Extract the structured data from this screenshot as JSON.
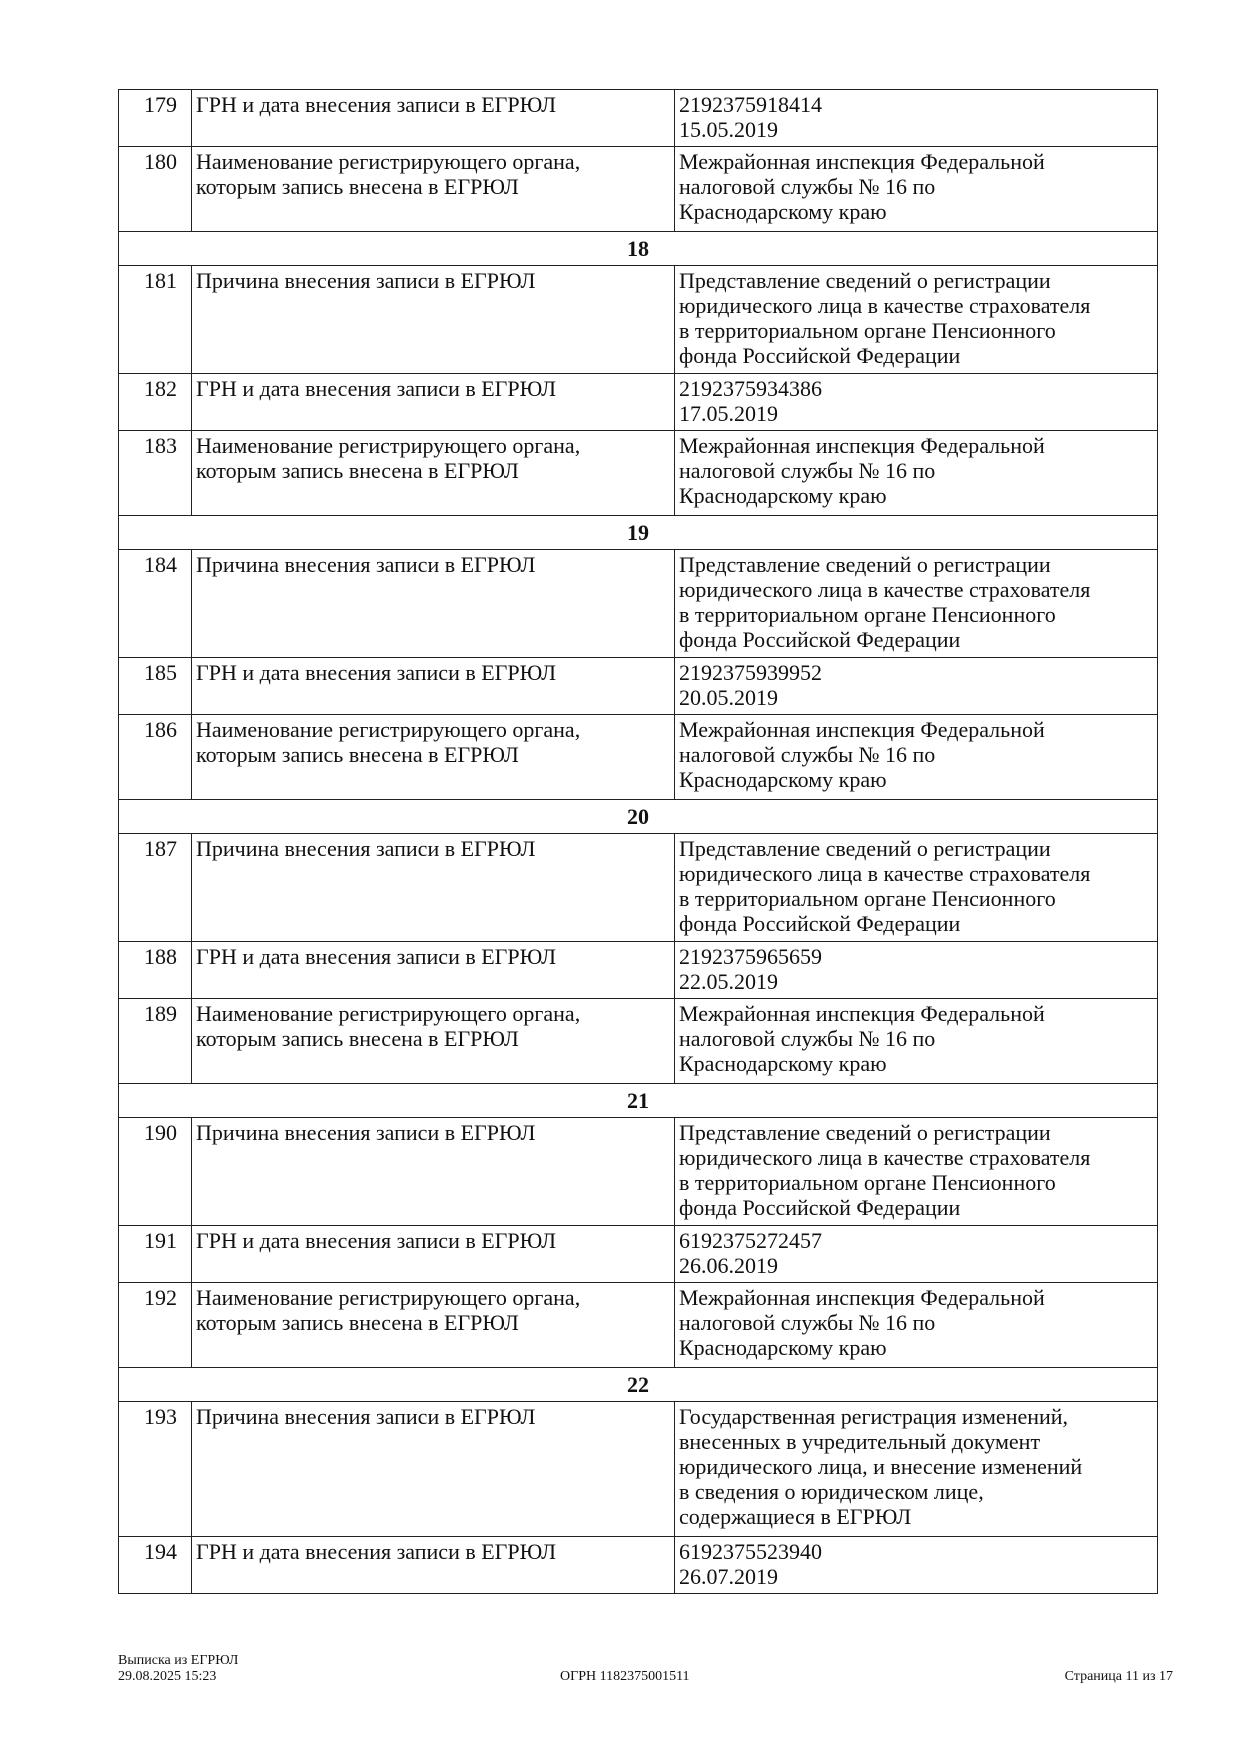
{
  "rows": [
    {
      "type": "row",
      "num": "179",
      "label": [
        "ГРН и дата внесения записи в ЕГРЮЛ"
      ],
      "value": [
        "2192375918414",
        "15.05.2019"
      ]
    },
    {
      "type": "row",
      "num": "180",
      "label": [
        "Наименование регистрирующего органа,",
        "которым запись внесена в ЕГРЮЛ"
      ],
      "value": [
        "Межрайонная инспекция Федеральной",
        "налоговой службы № 16 по",
        "Краснодарскому краю"
      ]
    },
    {
      "type": "section",
      "title": "18"
    },
    {
      "type": "row",
      "num": "181",
      "label": [
        "Причина внесения записи в ЕГРЮЛ"
      ],
      "value": [
        "Представление сведений о регистрации",
        "юридического лица в качестве страхователя",
        "в территориальном органе Пенсионного",
        "фонда Российской Федерации"
      ]
    },
    {
      "type": "row",
      "num": "182",
      "label": [
        "ГРН и дата внесения записи в ЕГРЮЛ"
      ],
      "value": [
        "2192375934386",
        "17.05.2019"
      ]
    },
    {
      "type": "row",
      "num": "183",
      "label": [
        "Наименование регистрирующего органа,",
        "которым запись внесена в ЕГРЮЛ"
      ],
      "value": [
        "Межрайонная инспекция Федеральной",
        "налоговой службы № 16 по",
        "Краснодарскому краю"
      ]
    },
    {
      "type": "section",
      "title": "19"
    },
    {
      "type": "row",
      "num": "184",
      "label": [
        "Причина внесения записи в ЕГРЮЛ"
      ],
      "value": [
        "Представление сведений о регистрации",
        "юридического лица в качестве страхователя",
        "в территориальном органе Пенсионного",
        "фонда Российской Федерации"
      ]
    },
    {
      "type": "row",
      "num": "185",
      "label": [
        "ГРН и дата внесения записи в ЕГРЮЛ"
      ],
      "value": [
        "2192375939952",
        "20.05.2019"
      ]
    },
    {
      "type": "row",
      "num": "186",
      "label": [
        "Наименование регистрирующего органа,",
        "которым запись внесена в ЕГРЮЛ"
      ],
      "value": [
        "Межрайонная инспекция Федеральной",
        "налоговой службы № 16 по",
        "Краснодарскому краю"
      ]
    },
    {
      "type": "section",
      "title": "20"
    },
    {
      "type": "row",
      "num": "187",
      "label": [
        "Причина внесения записи в ЕГРЮЛ"
      ],
      "value": [
        "Представление сведений о регистрации",
        "юридического лица в качестве страхователя",
        "в территориальном органе Пенсионного",
        "фонда Российской Федерации"
      ]
    },
    {
      "type": "row",
      "num": "188",
      "label": [
        "ГРН и дата внесения записи в ЕГРЮЛ"
      ],
      "value": [
        "2192375965659",
        "22.05.2019"
      ]
    },
    {
      "type": "row",
      "num": "189",
      "label": [
        "Наименование регистрирующего органа,",
        "которым запись внесена в ЕГРЮЛ"
      ],
      "value": [
        "Межрайонная инспекция Федеральной",
        "налоговой службы № 16 по",
        "Краснодарскому краю"
      ]
    },
    {
      "type": "section",
      "title": "21"
    },
    {
      "type": "row",
      "num": "190",
      "label": [
        "Причина внесения записи в ЕГРЮЛ"
      ],
      "value": [
        "Представление сведений о регистрации",
        "юридического лица в качестве страхователя",
        "в территориальном органе Пенсионного",
        "фонда Российской Федерации"
      ]
    },
    {
      "type": "row",
      "num": "191",
      "label": [
        "ГРН и дата внесения записи в ЕГРЮЛ"
      ],
      "value": [
        "6192375272457",
        "26.06.2019"
      ]
    },
    {
      "type": "row",
      "num": "192",
      "label": [
        "Наименование регистрирующего органа,",
        "которым запись внесена в ЕГРЮЛ"
      ],
      "value": [
        "Межрайонная инспекция Федеральной",
        "налоговой службы № 16 по",
        "Краснодарскому краю"
      ]
    },
    {
      "type": "section",
      "title": "22"
    },
    {
      "type": "row",
      "num": "193",
      "label": [
        "Причина внесения записи в ЕГРЮЛ"
      ],
      "value": [
        "Государственная регистрация изменений,",
        "внесенных в учредительный документ",
        "юридического лица, и внесение изменений",
        "в сведения о юридическом лице,",
        "содержащиеся в ЕГРЮЛ"
      ]
    },
    {
      "type": "row",
      "num": "194",
      "label": [
        "ГРН и дата внесения записи в ЕГРЮЛ"
      ],
      "value": [
        "6192375523940",
        "26.07.2019"
      ]
    }
  ],
  "footer": {
    "doc_title": "Выписка из ЕГРЮЛ",
    "datetime": "29.08.2025 15:23",
    "ogrn": "ОГРН 1182375001511",
    "page": "Страница 11 из 17"
  }
}
